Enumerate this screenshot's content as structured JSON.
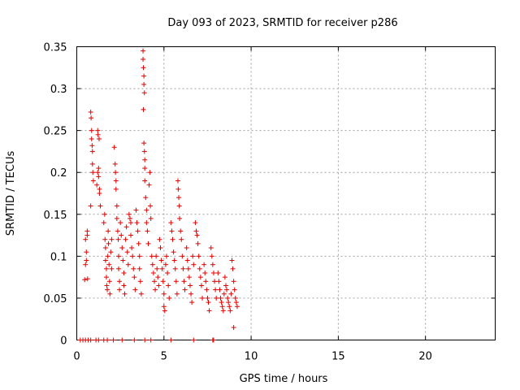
{
  "chart_data": {
    "type": "scatter",
    "title": "Day 093 of 2023, SRMTID for receiver p286",
    "xlabel": "GPS time / hours",
    "ylabel": "SRMTID / TECUs",
    "xlim": [
      0,
      24
    ],
    "ylim": [
      0,
      0.35
    ],
    "xticks": [
      0,
      5,
      10,
      15,
      20
    ],
    "xtick_labels": [
      "0",
      "5",
      "10",
      "15",
      "20"
    ],
    "yticks": [
      0,
      0.05,
      0.1,
      0.15,
      0.2,
      0.25,
      0.3,
      0.35
    ],
    "ytick_labels": [
      "0",
      "0.05",
      "0.1",
      "0.15",
      "0.2",
      "0.25",
      "0.3",
      "0.35"
    ],
    "grid": true,
    "marker": "+",
    "color": "#e00000",
    "series": [
      {
        "name": "SRMTID",
        "points": [
          [
            0.2,
            0.0
          ],
          [
            0.35,
            0.0
          ],
          [
            0.5,
            0.0
          ],
          [
            0.65,
            0.0
          ],
          [
            0.8,
            0.0
          ],
          [
            1.1,
            0.0
          ],
          [
            1.25,
            0.0
          ],
          [
            1.55,
            0.0
          ],
          [
            1.75,
            0.0
          ],
          [
            2.1,
            0.0
          ],
          [
            2.6,
            0.0
          ],
          [
            3.3,
            0.0
          ],
          [
            3.9,
            0.0
          ],
          [
            4.25,
            0.0
          ],
          [
            5.4,
            0.0
          ],
          [
            6.7,
            0.0
          ],
          [
            7.8,
            0.0
          ],
          [
            7.85,
            0.0
          ],
          [
            0.45,
            0.072
          ],
          [
            0.5,
            0.09
          ],
          [
            0.5,
            0.12
          ],
          [
            0.55,
            0.105
          ],
          [
            0.55,
            0.095
          ],
          [
            0.6,
            0.13
          ],
          [
            0.6,
            0.125
          ],
          [
            0.62,
            0.073
          ],
          [
            0.8,
            0.272
          ],
          [
            0.82,
            0.265
          ],
          [
            0.85,
            0.25
          ],
          [
            0.85,
            0.24
          ],
          [
            0.9,
            0.225
          ],
          [
            0.9,
            0.21
          ],
          [
            0.92,
            0.2
          ],
          [
            0.95,
            0.19
          ],
          [
            0.8,
            0.16
          ],
          [
            0.88,
            0.232
          ],
          [
            1.2,
            0.25
          ],
          [
            1.22,
            0.245
          ],
          [
            1.25,
            0.205
          ],
          [
            1.25,
            0.195
          ],
          [
            1.3,
            0.18
          ],
          [
            1.3,
            0.175
          ],
          [
            1.15,
            0.185
          ],
          [
            1.2,
            0.2
          ],
          [
            1.35,
            0.16
          ],
          [
            1.28,
            0.24
          ],
          [
            1.55,
            0.14
          ],
          [
            1.6,
            0.15
          ],
          [
            1.62,
            0.12
          ],
          [
            1.65,
            0.11
          ],
          [
            1.65,
            0.095
          ],
          [
            1.7,
            0.085
          ],
          [
            1.7,
            0.075
          ],
          [
            1.72,
            0.065
          ],
          [
            1.75,
            0.06
          ],
          [
            1.78,
            0.1
          ],
          [
            1.8,
            0.13
          ],
          [
            1.82,
            0.115
          ],
          [
            1.85,
            0.09
          ],
          [
            1.88,
            0.07
          ],
          [
            1.9,
            0.055
          ],
          [
            1.95,
            0.105
          ],
          [
            2.0,
            0.12
          ],
          [
            2.0,
            0.085
          ],
          [
            2.15,
            0.23
          ],
          [
            2.2,
            0.21
          ],
          [
            2.22,
            0.2
          ],
          [
            2.25,
            0.19
          ],
          [
            2.25,
            0.18
          ],
          [
            2.3,
            0.16
          ],
          [
            2.3,
            0.145
          ],
          [
            2.35,
            0.13
          ],
          [
            2.38,
            0.12
          ],
          [
            2.4,
            0.1
          ],
          [
            2.4,
            0.085
          ],
          [
            2.45,
            0.07
          ],
          [
            2.45,
            0.06
          ],
          [
            2.5,
            0.14
          ],
          [
            2.55,
            0.125
          ],
          [
            2.6,
            0.11
          ],
          [
            2.65,
            0.095
          ],
          [
            2.7,
            0.08
          ],
          [
            2.7,
            0.065
          ],
          [
            2.75,
            0.055
          ],
          [
            2.8,
            0.12
          ],
          [
            2.85,
            0.135
          ],
          [
            2.9,
            0.105
          ],
          [
            2.95,
            0.09
          ],
          [
            3.0,
            0.15
          ],
          [
            3.05,
            0.145
          ],
          [
            3.1,
            0.14
          ],
          [
            3.1,
            0.125
          ],
          [
            3.15,
            0.11
          ],
          [
            3.2,
            0.1
          ],
          [
            3.25,
            0.085
          ],
          [
            3.3,
            0.075
          ],
          [
            3.35,
            0.06
          ],
          [
            3.4,
            0.155
          ],
          [
            3.45,
            0.14
          ],
          [
            3.5,
            0.13
          ],
          [
            3.55,
            0.115
          ],
          [
            3.6,
            0.1
          ],
          [
            3.6,
            0.085
          ],
          [
            3.65,
            0.07
          ],
          [
            3.7,
            0.055
          ],
          [
            3.8,
            0.345
          ],
          [
            3.8,
            0.335
          ],
          [
            3.82,
            0.325
          ],
          [
            3.85,
            0.315
          ],
          [
            3.85,
            0.305
          ],
          [
            3.88,
            0.295
          ],
          [
            3.82,
            0.275
          ],
          [
            3.85,
            0.235
          ],
          [
            3.88,
            0.225
          ],
          [
            3.9,
            0.215
          ],
          [
            3.9,
            0.205
          ],
          [
            3.9,
            0.19
          ],
          [
            3.95,
            0.17
          ],
          [
            4.0,
            0.155
          ],
          [
            4.0,
            0.14
          ],
          [
            4.05,
            0.13
          ],
          [
            4.1,
            0.115
          ],
          [
            4.15,
            0.185
          ],
          [
            4.2,
            0.2
          ],
          [
            4.22,
            0.16
          ],
          [
            4.25,
            0.145
          ],
          [
            4.3,
            0.1
          ],
          [
            4.35,
            0.09
          ],
          [
            4.4,
            0.08
          ],
          [
            4.45,
            0.07
          ],
          [
            4.5,
            0.06
          ],
          [
            4.55,
            0.1
          ],
          [
            4.6,
            0.085
          ],
          [
            4.65,
            0.075
          ],
          [
            4.7,
            0.065
          ],
          [
            4.75,
            0.12
          ],
          [
            4.8,
            0.11
          ],
          [
            4.85,
            0.095
          ],
          [
            4.9,
            0.085
          ],
          [
            4.95,
            0.07
          ],
          [
            5.0,
            0.055
          ],
          [
            5.0,
            0.04
          ],
          [
            5.05,
            0.035
          ],
          [
            5.1,
            0.09
          ],
          [
            5.15,
            0.1
          ],
          [
            5.2,
            0.08
          ],
          [
            5.25,
            0.065
          ],
          [
            5.3,
            0.05
          ],
          [
            5.4,
            0.14
          ],
          [
            5.45,
            0.13
          ],
          [
            5.5,
            0.12
          ],
          [
            5.55,
            0.105
          ],
          [
            5.6,
            0.095
          ],
          [
            5.65,
            0.085
          ],
          [
            5.7,
            0.07
          ],
          [
            5.75,
            0.055
          ],
          [
            5.8,
            0.19
          ],
          [
            5.82,
            0.18
          ],
          [
            5.85,
            0.17
          ],
          [
            5.88,
            0.16
          ],
          [
            5.9,
            0.145
          ],
          [
            5.95,
            0.13
          ],
          [
            6.0,
            0.12
          ],
          [
            6.05,
            0.1
          ],
          [
            6.1,
            0.085
          ],
          [
            6.15,
            0.07
          ],
          [
            6.2,
            0.06
          ],
          [
            6.3,
            0.11
          ],
          [
            6.35,
            0.095
          ],
          [
            6.4,
            0.085
          ],
          [
            6.45,
            0.075
          ],
          [
            6.5,
            0.065
          ],
          [
            6.55,
            0.055
          ],
          [
            6.6,
            0.045
          ],
          [
            6.65,
            0.1
          ],
          [
            6.7,
            0.09
          ],
          [
            6.8,
            0.14
          ],
          [
            6.85,
            0.13
          ],
          [
            6.9,
            0.125
          ],
          [
            6.95,
            0.115
          ],
          [
            7.0,
            0.1
          ],
          [
            7.05,
            0.085
          ],
          [
            7.1,
            0.075
          ],
          [
            7.15,
            0.065
          ],
          [
            7.2,
            0.05
          ],
          [
            7.3,
            0.09
          ],
          [
            7.35,
            0.08
          ],
          [
            7.4,
            0.07
          ],
          [
            7.45,
            0.06
          ],
          [
            7.5,
            0.05
          ],
          [
            7.55,
            0.045
          ],
          [
            7.6,
            0.035
          ],
          [
            7.7,
            0.11
          ],
          [
            7.75,
            0.1
          ],
          [
            7.8,
            0.09
          ],
          [
            7.85,
            0.08
          ],
          [
            7.9,
            0.07
          ],
          [
            7.95,
            0.06
          ],
          [
            8.0,
            0.05
          ],
          [
            8.1,
            0.08
          ],
          [
            8.15,
            0.07
          ],
          [
            8.2,
            0.06
          ],
          [
            8.25,
            0.05
          ],
          [
            8.3,
            0.045
          ],
          [
            8.35,
            0.04
          ],
          [
            8.4,
            0.035
          ],
          [
            8.45,
            0.055
          ],
          [
            8.5,
            0.075
          ],
          [
            8.55,
            0.065
          ],
          [
            8.6,
            0.06
          ],
          [
            8.65,
            0.05
          ],
          [
            8.7,
            0.045
          ],
          [
            8.75,
            0.04
          ],
          [
            8.8,
            0.035
          ],
          [
            8.85,
            0.055
          ],
          [
            8.9,
            0.095
          ],
          [
            8.95,
            0.085
          ],
          [
            9.0,
            0.07
          ],
          [
            9.05,
            0.06
          ],
          [
            9.1,
            0.05
          ],
          [
            9.15,
            0.045
          ],
          [
            9.2,
            0.04
          ],
          [
            9.0,
            0.015
          ]
        ]
      }
    ]
  }
}
